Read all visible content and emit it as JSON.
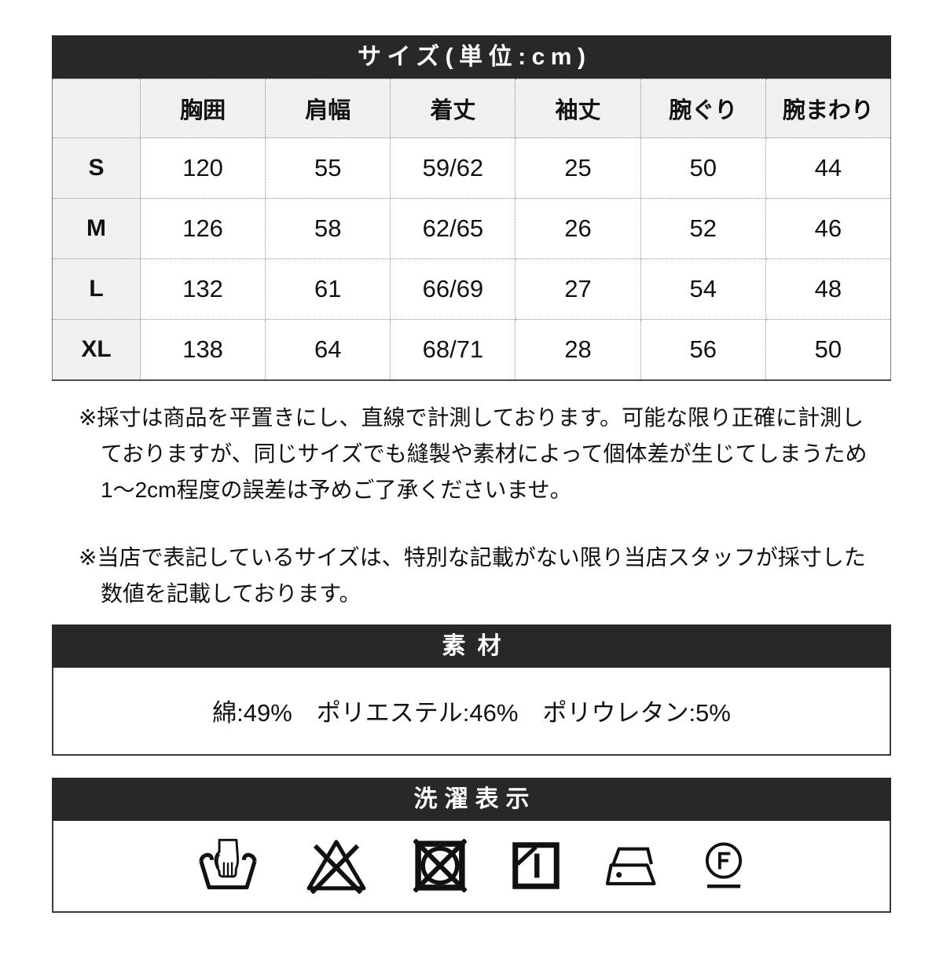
{
  "size_table": {
    "title": "サイズ(単位:cm)",
    "corner": "",
    "columns": [
      "胸囲",
      "肩幅",
      "着丈",
      "袖丈",
      "腕ぐり",
      "腕まわり"
    ],
    "rows": [
      {
        "size": "S",
        "values": [
          "120",
          "55",
          "59/62",
          "25",
          "50",
          "44"
        ]
      },
      {
        "size": "M",
        "values": [
          "126",
          "58",
          "62/65",
          "26",
          "52",
          "46"
        ]
      },
      {
        "size": "L",
        "values": [
          "132",
          "61",
          "66/69",
          "27",
          "54",
          "48"
        ]
      },
      {
        "size": "XL",
        "values": [
          "138",
          "64",
          "68/71",
          "28",
          "56",
          "50"
        ]
      }
    ]
  },
  "notes": [
    {
      "lines": [
        "※採寸は商品を平置きにし、直線で計測しております。可能な限り正確に計測し",
        "ておりますが、同じサイズでも縫製や素材によって個体差が生じてしまうため",
        "1〜2cm程度の誤差は予めご了承くださいませ。"
      ]
    },
    {
      "lines": [
        "※当店で表記しているサイズは、特別な記載がない限り当店スタッフが採寸した",
        "数値を記載しております。"
      ]
    }
  ],
  "material": {
    "title": "素材",
    "content": "綿:49%　ポリエステル:46%　ポリウレタン:5%"
  },
  "laundry": {
    "title": "洗濯表示",
    "symbols": [
      "hand-wash-icon",
      "do-not-bleach-icon",
      "do-not-tumble-dry-icon",
      "line-dry-in-shade-icon",
      "iron-low-icon",
      "dry-clean-petroleum-gentle-icon"
    ]
  },
  "colors": {
    "band_bg": "#282828",
    "band_text": "#ffffff",
    "cell_header_bg": "#f0f0f0",
    "table_border": "#7f7f7f",
    "text": "#111111"
  }
}
